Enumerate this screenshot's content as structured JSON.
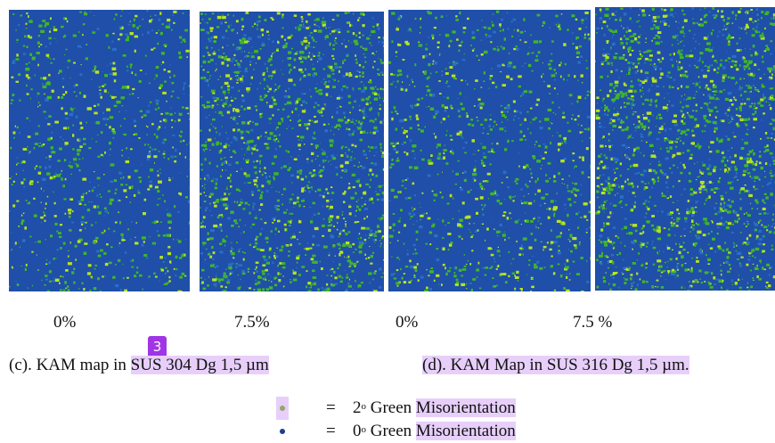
{
  "panels": [
    {
      "id": "c-0",
      "strain_label": "0%",
      "green_density": 0.3
    },
    {
      "id": "c-7.5",
      "strain_label": "7.5%",
      "green_density": 0.55
    },
    {
      "id": "d-0",
      "strain_label": "0%",
      "green_density": 0.32
    },
    {
      "id": "d-7.5",
      "strain_label": "7.5 %",
      "green_density": 0.58
    }
  ],
  "captions": {
    "c_prefix": "(c). KAM map in ",
    "c_material": "SUS 304  Dg 1,5 µm",
    "d_prefix": "(d). KAM Map in ",
    "d_material": "SUS 316 Dg 1,5 µm."
  },
  "badge": "3",
  "legend": {
    "row1": {
      "eq": "=",
      "degree": "2",
      "deg_sym": "o",
      "color_word": "Green",
      "term": "Misorientation",
      "dot_color": "#8fa86a"
    },
    "row2": {
      "eq": "=",
      "degree": "0",
      "deg_sym": "o",
      "color_word": "Green",
      "term": "Misorientation",
      "dot_color": "#1a3f8f"
    }
  },
  "colors": {
    "blue": "#1f4fa8",
    "green": "#3fb62a",
    "yellow_green": "#b8e41e",
    "highlight": "#e7cffa",
    "badge": "#a035e6"
  }
}
